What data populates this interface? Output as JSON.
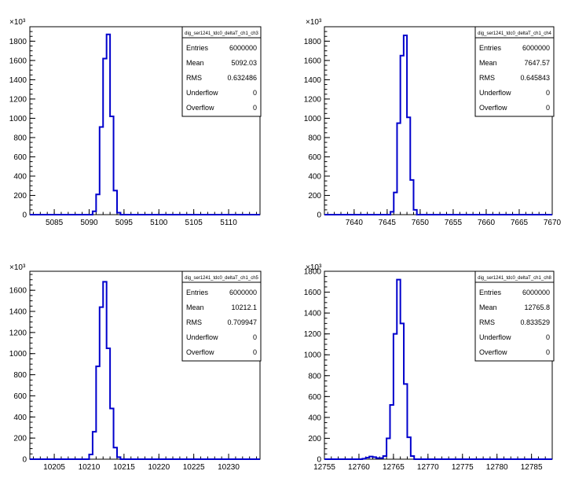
{
  "exponent_label": "×10³",
  "chart_data": [
    {
      "type": "histogram",
      "stats_title": "dig_ser1241_tdc0_deltaT_ch1_ch3",
      "stats": [
        {
          "label": "Entries",
          "value": "6000000"
        },
        {
          "label": "Mean",
          "value": "5092.03"
        },
        {
          "label": "RMS",
          "value": "0.632486"
        },
        {
          "label": "Underflow",
          "value": "0"
        },
        {
          "label": "Overflow",
          "value": "0"
        }
      ],
      "xlim": [
        5081.5,
        5114.5
      ],
      "ylim": [
        0,
        1950
      ],
      "xticks": [
        5085,
        5090,
        5095,
        5100,
        5105,
        5110
      ],
      "yticks": [
        0,
        200,
        400,
        600,
        800,
        1000,
        1200,
        1400,
        1600,
        1800
      ],
      "bin_width": 0.5,
      "bins": [
        [
          5090.5,
          35
        ],
        [
          5091.0,
          210
        ],
        [
          5091.5,
          910
        ],
        [
          5092.0,
          1620
        ],
        [
          5092.5,
          1870
        ],
        [
          5093.0,
          1020
        ],
        [
          5093.5,
          250
        ],
        [
          5094.0,
          20
        ]
      ]
    },
    {
      "type": "histogram",
      "stats_title": "dig_ser1241_tdc0_deltaT_ch1_ch4",
      "stats": [
        {
          "label": "Entries",
          "value": "6000000"
        },
        {
          "label": "Mean",
          "value": "7647.57"
        },
        {
          "label": "RMS",
          "value": "0.645843"
        },
        {
          "label": "Underflow",
          "value": "0"
        },
        {
          "label": "Overflow",
          "value": "0"
        }
      ],
      "xlim": [
        7635.5,
        7670
      ],
      "ylim": [
        0,
        1950
      ],
      "xticks": [
        7640,
        7645,
        7650,
        7655,
        7660,
        7665,
        7670
      ],
      "yticks": [
        0,
        200,
        400,
        600,
        800,
        1000,
        1200,
        1400,
        1600,
        1800
      ],
      "bin_width": 0.5,
      "bins": [
        [
          7645.5,
          30
        ],
        [
          7646.0,
          230
        ],
        [
          7646.5,
          950
        ],
        [
          7647.0,
          1650
        ],
        [
          7647.5,
          1860
        ],
        [
          7648.0,
          1010
        ],
        [
          7648.5,
          360
        ],
        [
          7649.0,
          50
        ]
      ]
    },
    {
      "type": "histogram",
      "stats_title": "dig_ser1241_tdc0_deltaT_ch1_ch5",
      "stats": [
        {
          "label": "Entries",
          "value": "6000000"
        },
        {
          "label": "Mean",
          "value": "10212.1"
        },
        {
          "label": "RMS",
          "value": "0.709947"
        },
        {
          "label": "Underflow",
          "value": "0"
        },
        {
          "label": "Overflow",
          "value": "0"
        }
      ],
      "xlim": [
        10201.5,
        10234.5
      ],
      "ylim": [
        0,
        1780
      ],
      "xticks": [
        10205,
        10210,
        10215,
        10220,
        10225,
        10230
      ],
      "yticks": [
        0,
        200,
        400,
        600,
        800,
        1000,
        1200,
        1400,
        1600
      ],
      "bin_width": 0.5,
      "bins": [
        [
          10210.0,
          45
        ],
        [
          10210.5,
          260
        ],
        [
          10211.0,
          880
        ],
        [
          10211.5,
          1440
        ],
        [
          10212.0,
          1680
        ],
        [
          10212.5,
          1050
        ],
        [
          10213.0,
          480
        ],
        [
          10213.5,
          110
        ],
        [
          10214.0,
          20
        ]
      ]
    },
    {
      "type": "histogram",
      "stats_title": "dig_ser1241_tdc0_deltaT_ch1_ch8",
      "stats": [
        {
          "label": "Entries",
          "value": "6000000"
        },
        {
          "label": "Mean",
          "value": "12765.8"
        },
        {
          "label": "RMS",
          "value": "0.833529"
        },
        {
          "label": "Underflow",
          "value": "0"
        },
        {
          "label": "Overflow",
          "value": "0"
        }
      ],
      "xlim": [
        12755,
        12788
      ],
      "ylim": [
        0,
        1800
      ],
      "xticks": [
        12755,
        12760,
        12765,
        12770,
        12775,
        12780,
        12785
      ],
      "yticks": [
        0,
        200,
        400,
        600,
        800,
        1000,
        1200,
        1400,
        1600,
        1800
      ],
      "bin_width": 0.5,
      "bins": [
        [
          12760.5,
          5
        ],
        [
          12761.0,
          15
        ],
        [
          12761.5,
          25
        ],
        [
          12762.0,
          20
        ],
        [
          12762.5,
          10
        ],
        [
          12763.0,
          10
        ],
        [
          12763.5,
          30
        ],
        [
          12764.0,
          200
        ],
        [
          12764.5,
          520
        ],
        [
          12765.0,
          1200
        ],
        [
          12765.5,
          1720
        ],
        [
          12766.0,
          1300
        ],
        [
          12766.5,
          720
        ],
        [
          12767.0,
          210
        ],
        [
          12767.5,
          30
        ]
      ]
    }
  ]
}
